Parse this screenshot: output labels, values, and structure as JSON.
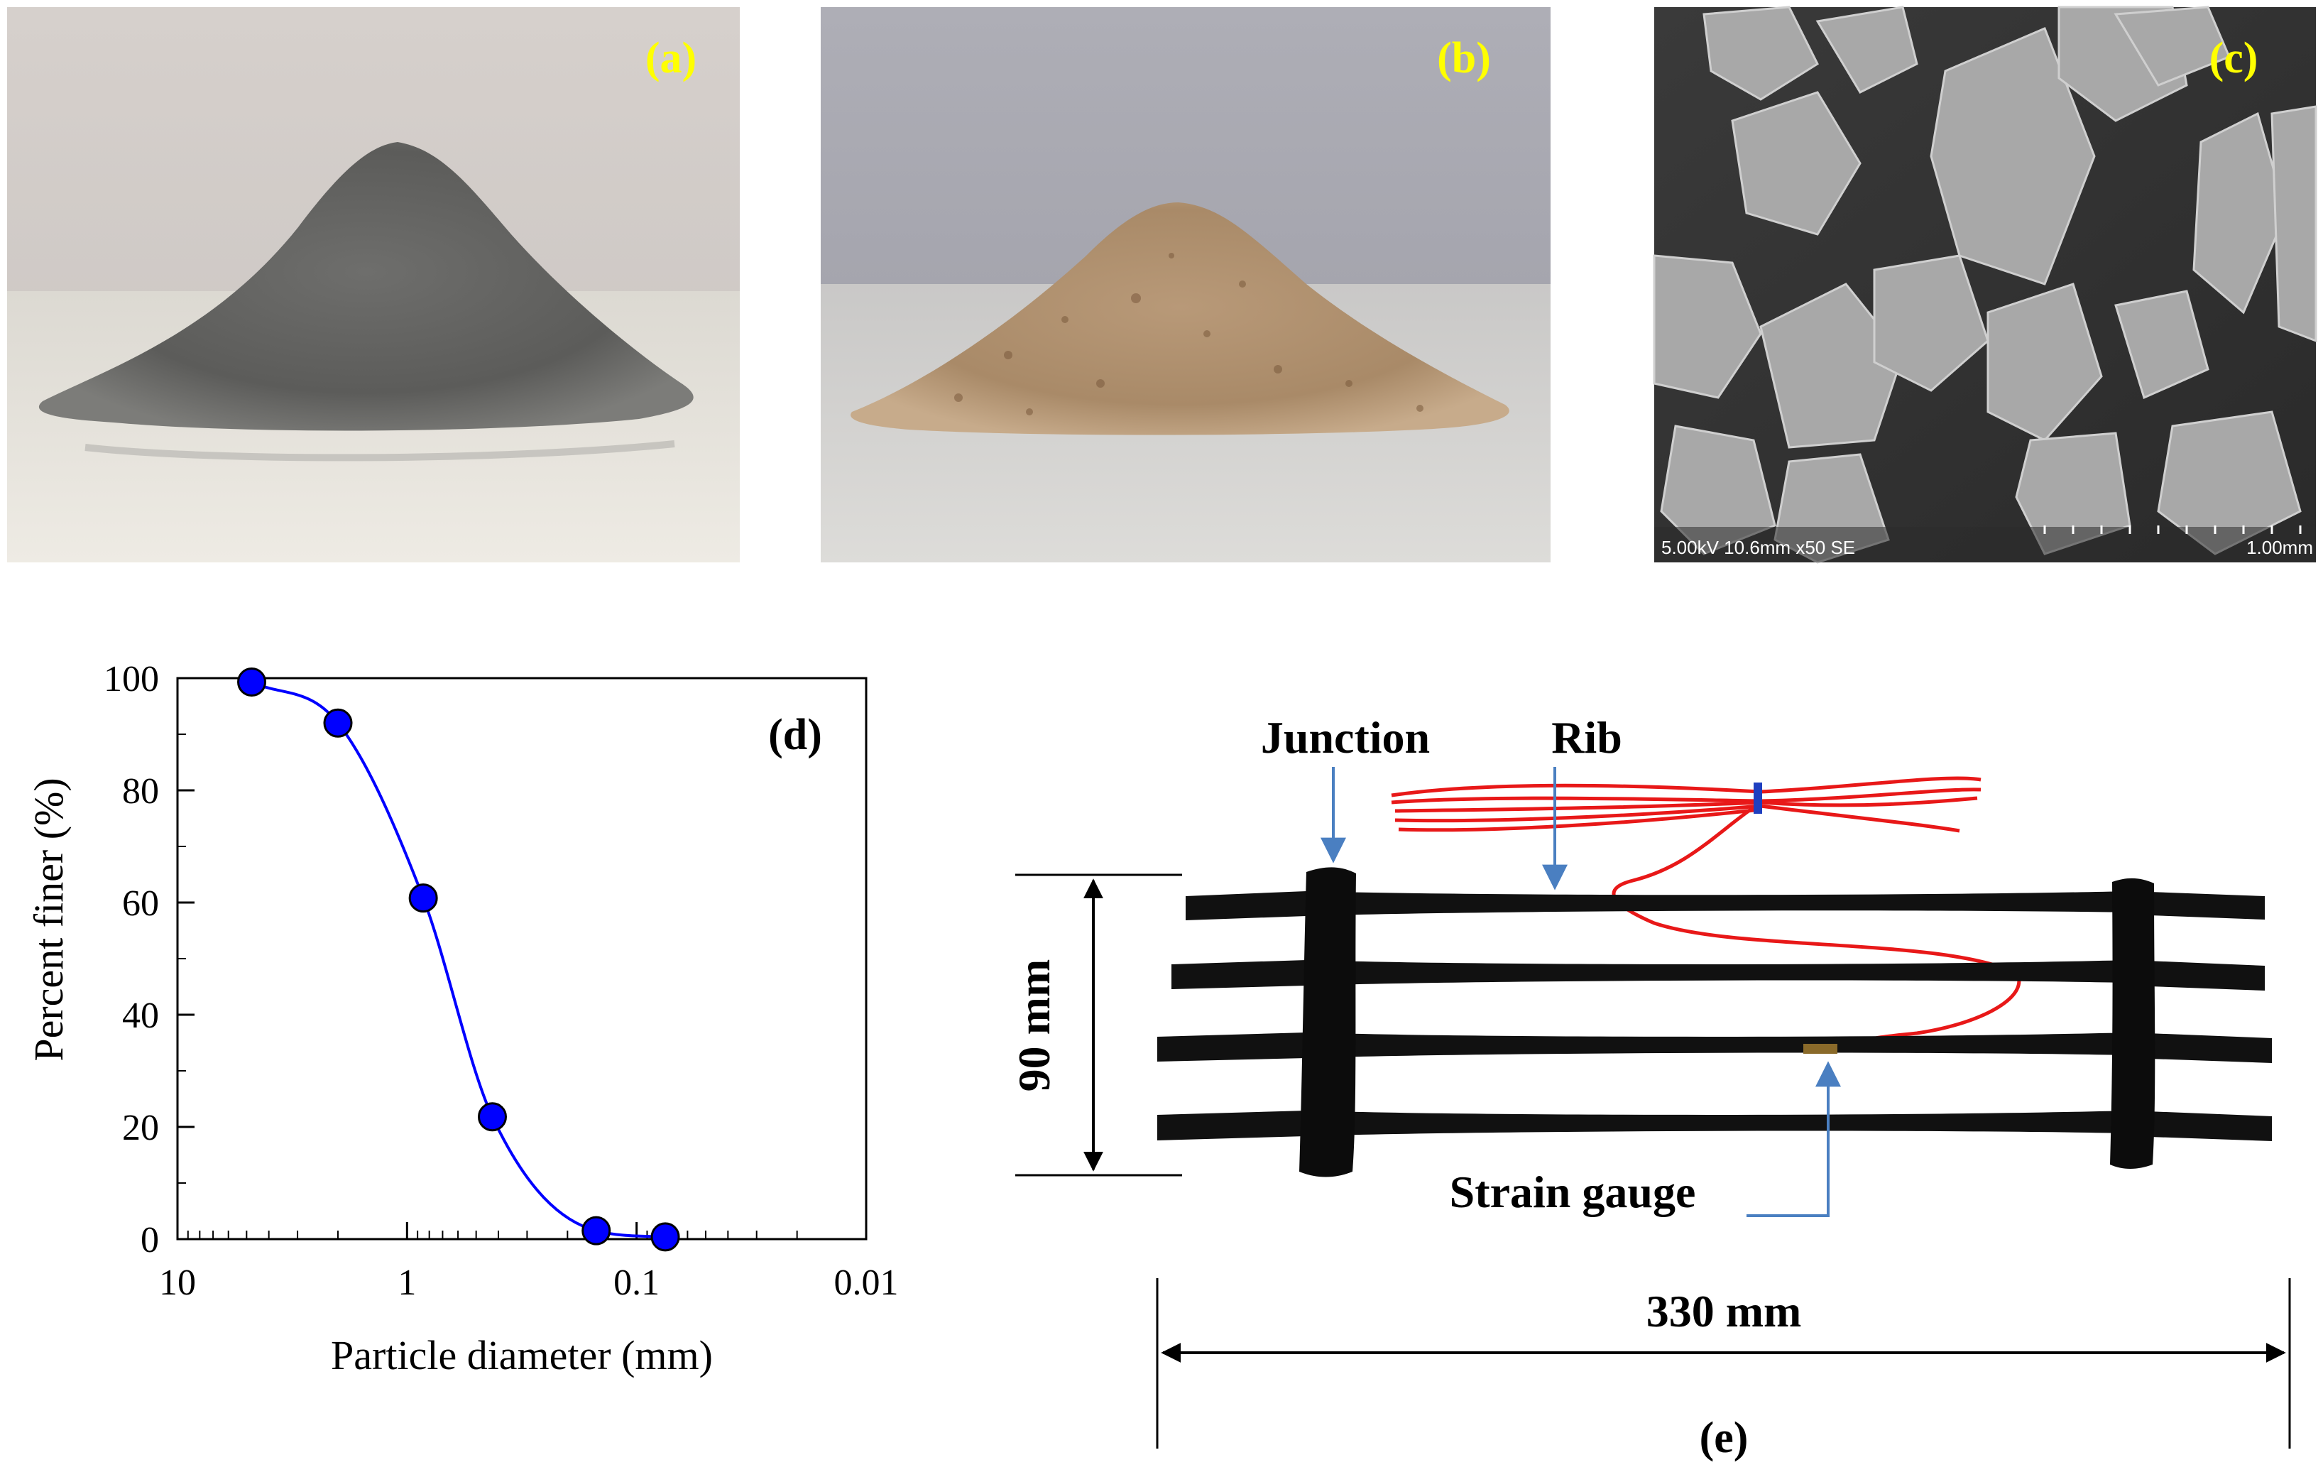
{
  "panels": {
    "a": {
      "label": "(a)"
    },
    "b": {
      "label": "(b)"
    },
    "c": {
      "label": "(c)",
      "sem_info": "5.00kV 10.6mm x50 SE",
      "scale_bar": "1.00mm"
    },
    "d": {
      "label": "(d)"
    },
    "e": {
      "label": "(e)",
      "annotations": {
        "junction": "Junction",
        "rib": "Rib",
        "strain_gauge": "Strain gauge",
        "width_dim": "90 mm",
        "length_dim": "330 mm"
      }
    }
  },
  "colors": {
    "panel_label": "#ffff00",
    "curve": "#0000ff",
    "marker_fill": "#0000ff",
    "annotation_arrow": "#4a7fc1",
    "wire": "#e81818",
    "geogrid": "#111111"
  },
  "chart_data": {
    "type": "scatter",
    "xlabel": "Particle diameter (mm)",
    "ylabel": "Percent finer (%)",
    "x_scale": "log",
    "x_reversed": true,
    "xlim": [
      10,
      0.01
    ],
    "ylim": [
      0,
      100
    ],
    "x_ticks": [
      10,
      1,
      0.1,
      0.01
    ],
    "x_tick_labels": [
      "10",
      "1",
      "0.1",
      "0.01"
    ],
    "y_ticks": [
      0,
      20,
      40,
      60,
      80,
      100
    ],
    "y_tick_labels": [
      "0",
      "20",
      "40",
      "60",
      "80",
      "100"
    ],
    "series": [
      {
        "x": [
          4.75,
          2.0,
          0.85,
          0.425,
          0.15,
          0.075
        ],
        "y": [
          99.3,
          92.0,
          60.8,
          21.8,
          1.5,
          0.4
        ],
        "marker": "circle",
        "curve": "smooth"
      }
    ]
  }
}
